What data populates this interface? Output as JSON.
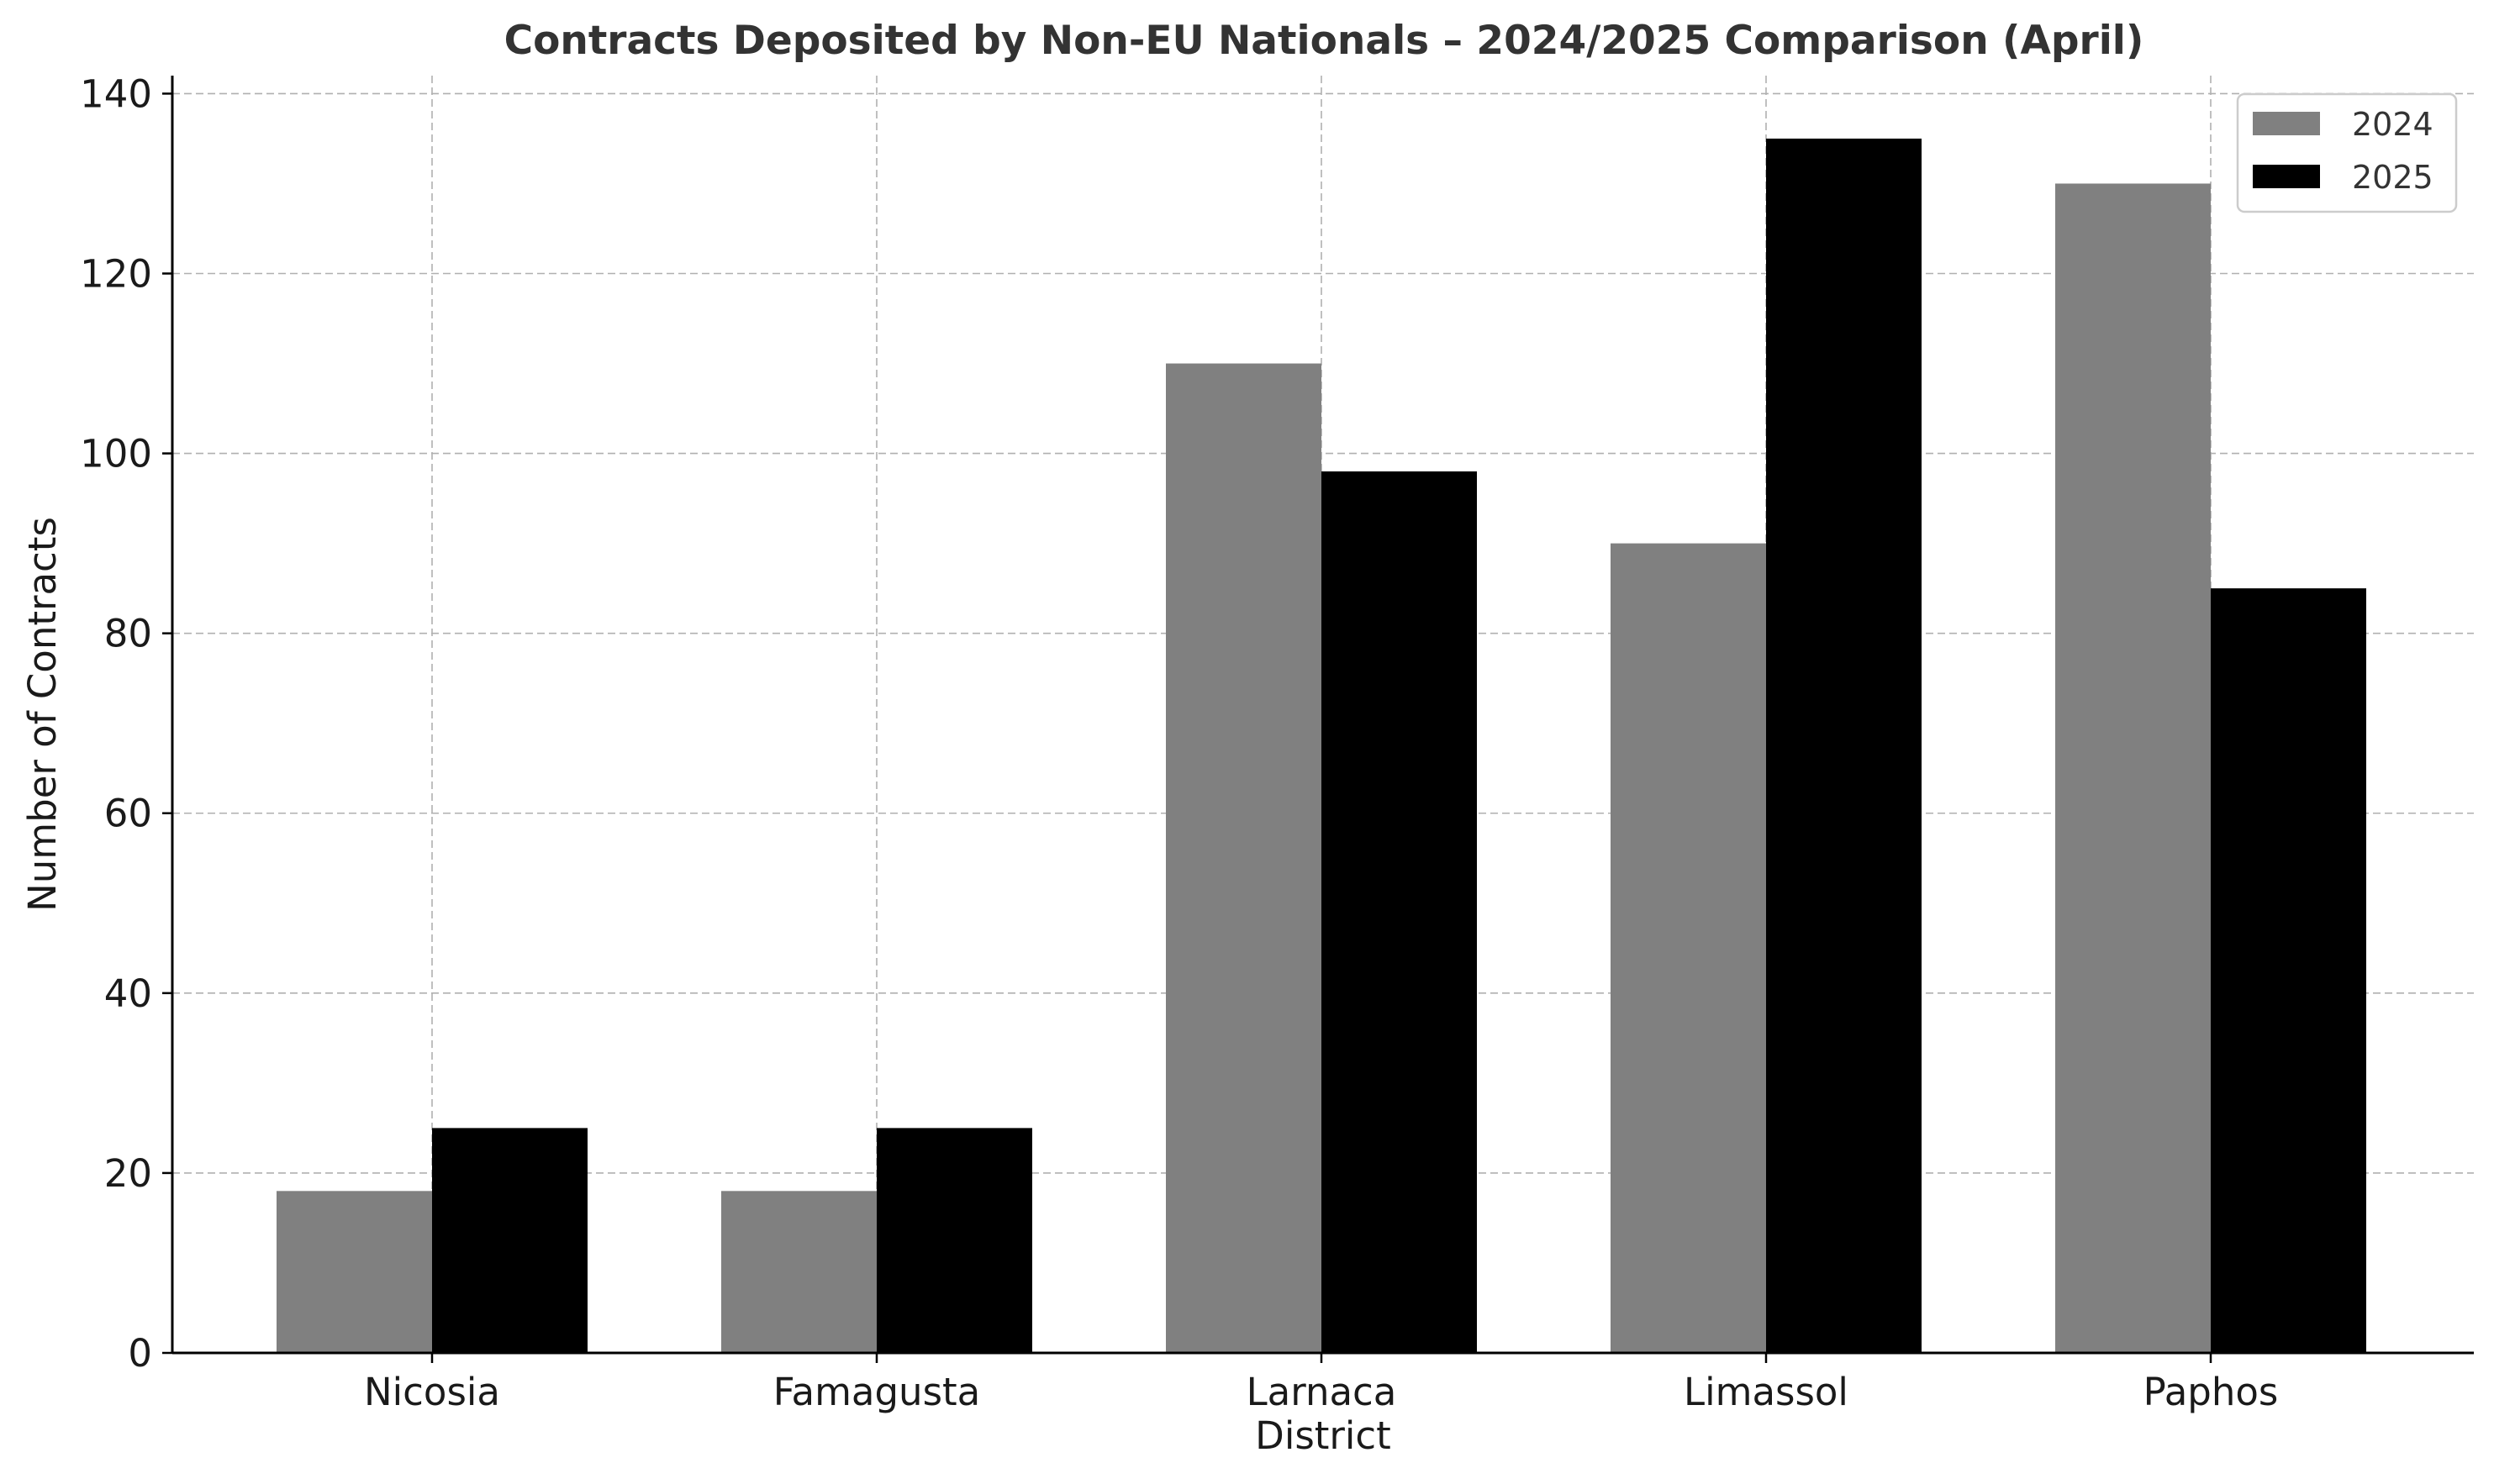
{
  "chart_data": {
    "type": "bar",
    "title": "Contracts Deposited by Non-EU Nationals – 2024/2025 Comparison (April)",
    "xlabel": "District",
    "ylabel": "Number of Contracts",
    "categories": [
      "Nicosia",
      "Famagusta",
      "Larnaca",
      "Limassol",
      "Paphos"
    ],
    "series": [
      {
        "name": "2024",
        "color": "#808080",
        "values": [
          18,
          18,
          110,
          90,
          130
        ]
      },
      {
        "name": "2025",
        "color": "#000000",
        "values": [
          25,
          25,
          98,
          135,
          85
        ]
      }
    ],
    "ylim": [
      0,
      142
    ],
    "yticks": [
      0,
      20,
      40,
      60,
      80,
      100,
      120,
      140
    ],
    "grid": true,
    "legend": "top-right"
  }
}
